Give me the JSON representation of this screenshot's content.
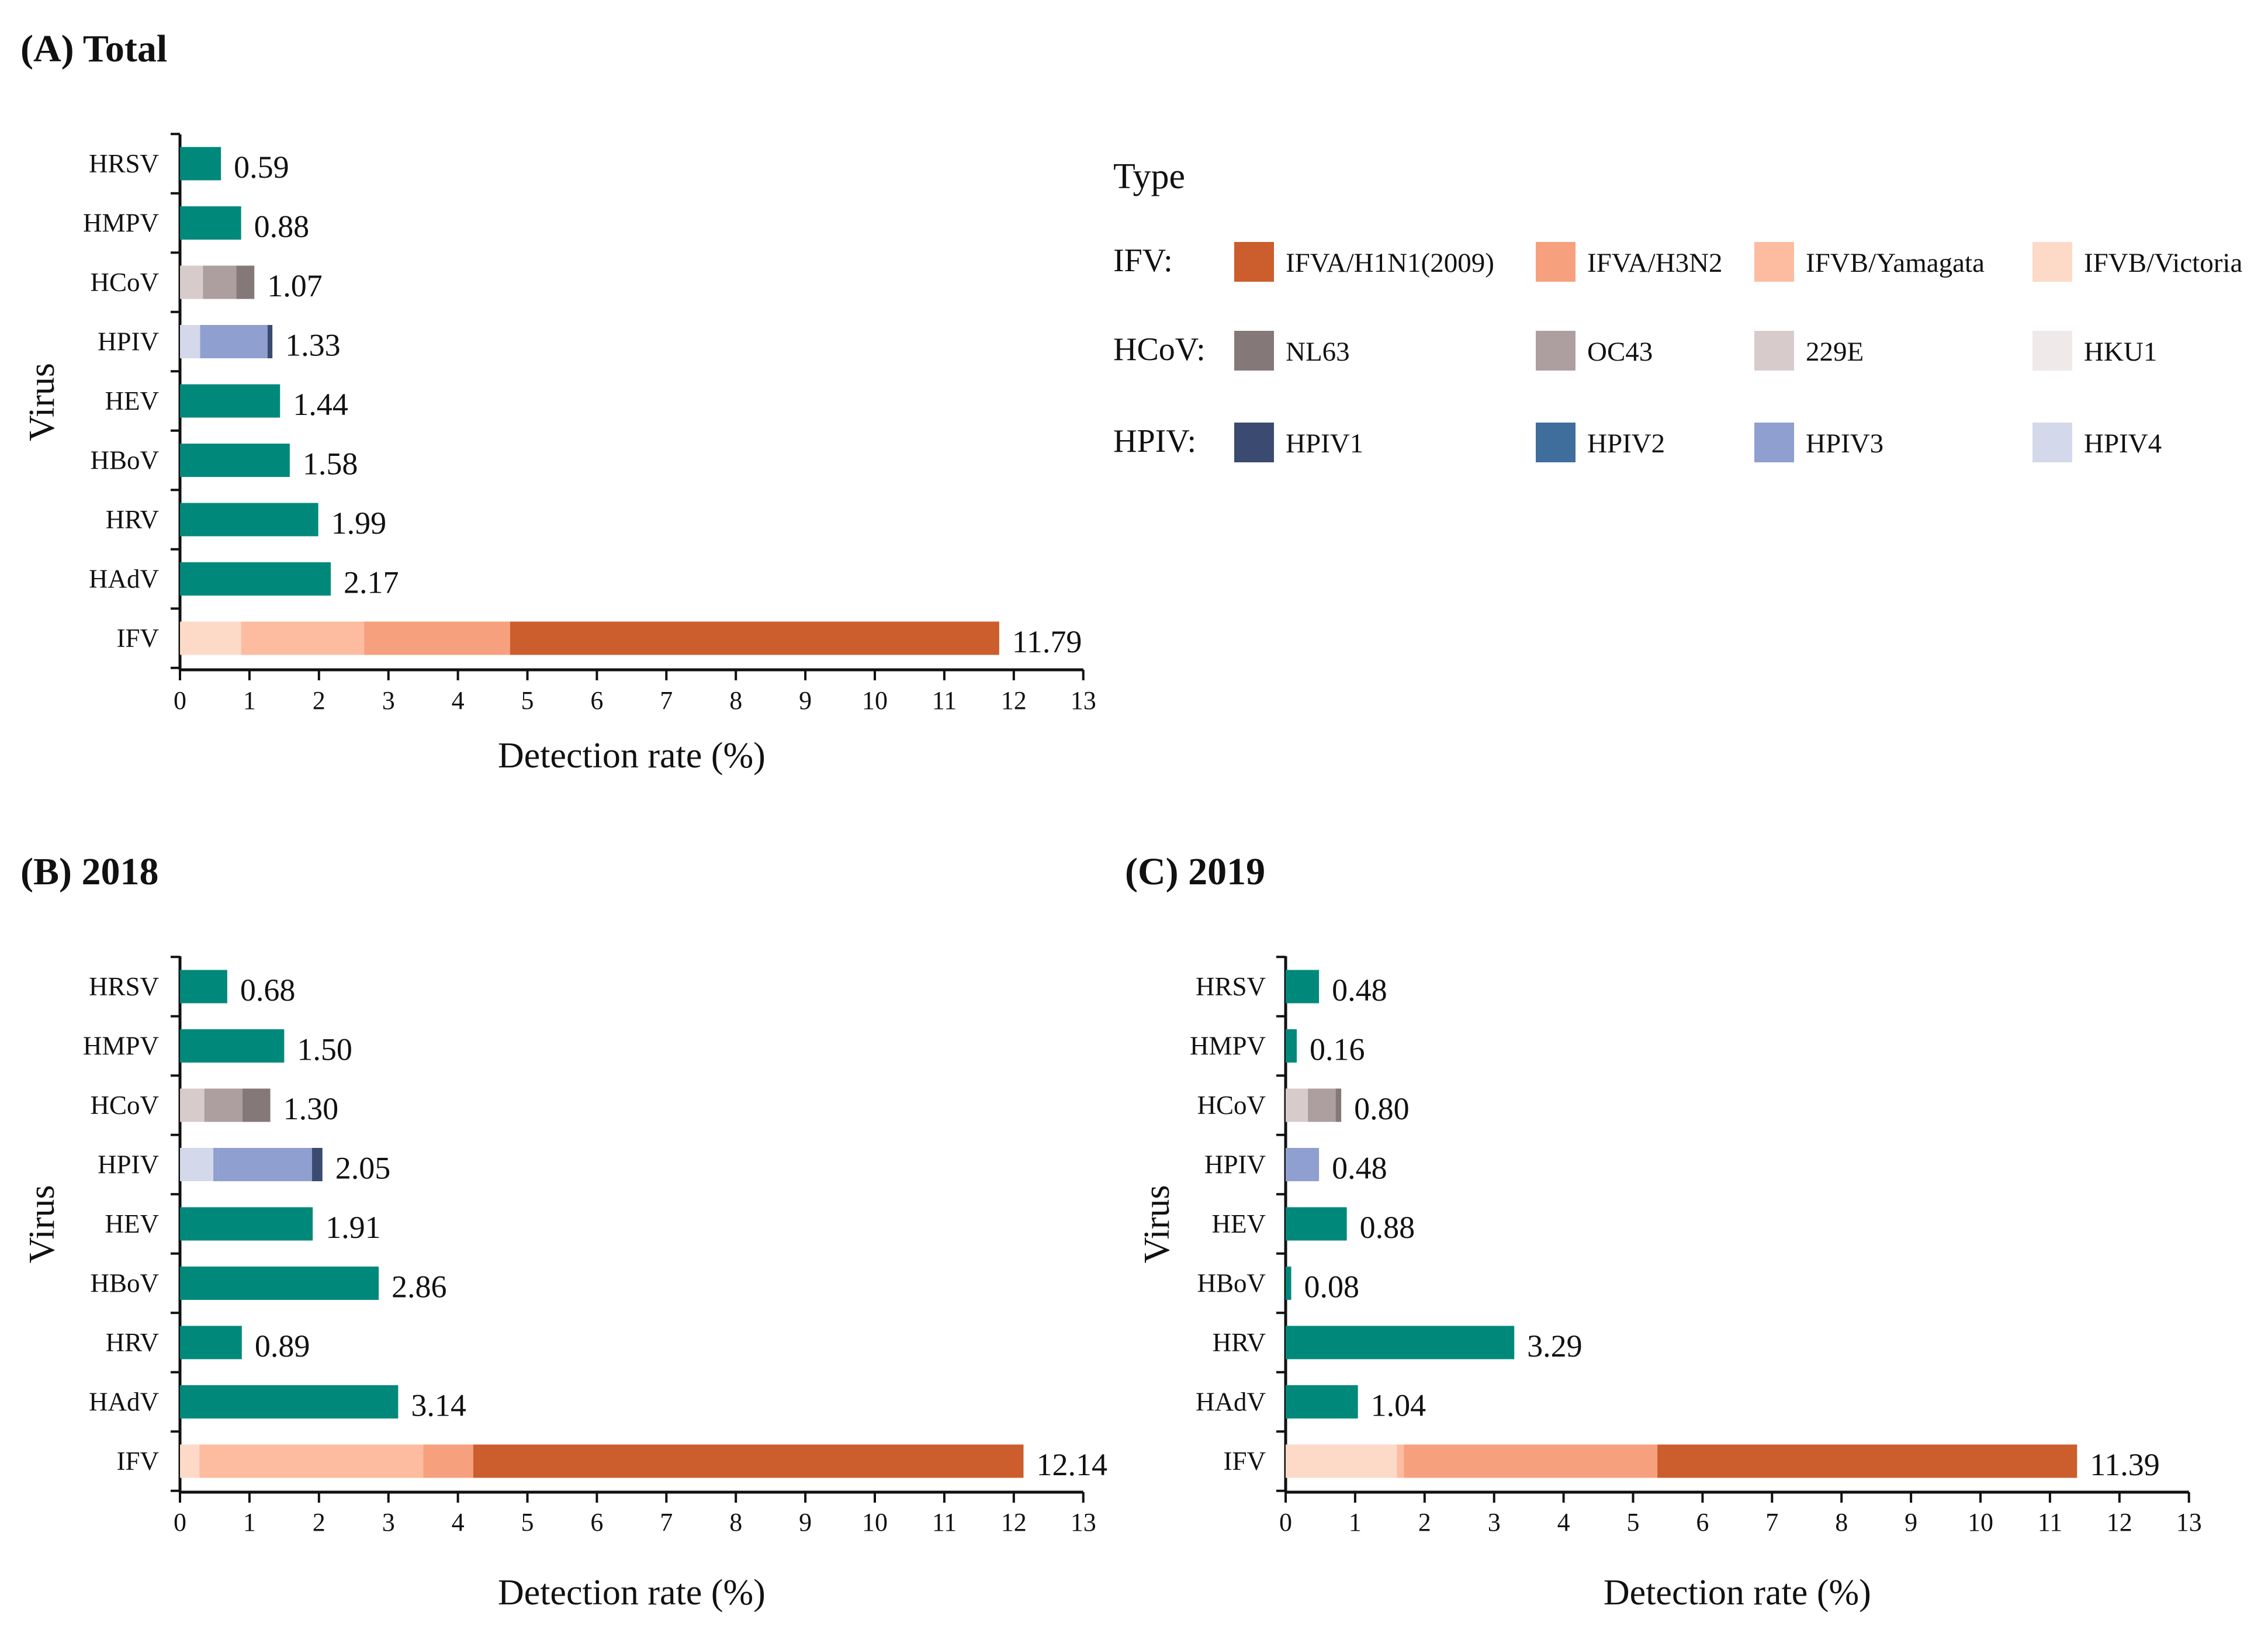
{
  "colors": {
    "single": "#00897b",
    "IFVA/H1N1(2009)": "#cc5d2c",
    "IFVA/H3N2": "#f7a07e",
    "IFVB/Yamagata": "#fdbc9f",
    "IFVB/Victoria": "#fdd9c8",
    "NL63": "#857878",
    "OC43": "#ad9f9f",
    "229E": "#d7cbcb",
    "HKU1": "#efe9e9",
    "HPIV1": "#3b4a70",
    "HPIV2": "#3f6e9c",
    "HPIV3": "#8f9fcf",
    "HPIV4": "#d3d9ea",
    "axis": "#111111"
  },
  "legend": {
    "title": "Type",
    "groups": [
      {
        "label": "IFV:",
        "entries": [
          "IFVA/H1N1(2009)",
          "IFVA/H3N2",
          "IFVB/Yamagata",
          "IFVB/Victoria"
        ]
      },
      {
        "label": "HCoV:",
        "entries": [
          "NL63",
          "OC43",
          "229E",
          "HKU1"
        ]
      },
      {
        "label": "HPIV:",
        "entries": [
          "HPIV1",
          "HPIV2",
          "HPIV3",
          "HPIV4"
        ]
      }
    ]
  },
  "chart_data": [
    {
      "type": "bar",
      "orientation": "horizontal",
      "stacked": true,
      "title": "(A) Total",
      "xlabel": "Detection rate (%)",
      "ylabel": "Virus",
      "xlim": [
        0,
        13
      ],
      "xticks": [
        "0",
        "1",
        "2",
        "3",
        "4",
        "5",
        "6",
        "7",
        "8",
        "9",
        "10",
        "11",
        "12",
        "13"
      ],
      "categories": [
        "HRSV",
        "HMPV",
        "HCoV",
        "HPIV",
        "HEV",
        "HBoV",
        "HRV",
        "HAdV",
        "IFV"
      ],
      "totals": [
        "0.59",
        "0.88",
        "1.07",
        "1.33",
        "1.44",
        "1.58",
        "1.99",
        "2.17",
        "11.79"
      ],
      "stacks": {
        "HCoV": [
          {
            "type": "229E",
            "value": 0.33
          },
          {
            "type": "OC43",
            "value": 0.48
          },
          {
            "type": "NL63",
            "value": 0.26
          }
        ],
        "HPIV": [
          {
            "type": "HPIV4",
            "value": 0.29
          },
          {
            "type": "HPIV3",
            "value": 0.97
          },
          {
            "type": "HPIV1",
            "value": 0.07
          }
        ],
        "IFV": [
          {
            "type": "IFVB/Victoria",
            "value": 0.88
          },
          {
            "type": "IFVB/Yamagata",
            "value": 1.77
          },
          {
            "type": "IFVA/H3N2",
            "value": 2.1
          },
          {
            "type": "IFVA/H1N1(2009)",
            "value": 7.04
          }
        ]
      }
    },
    {
      "type": "bar",
      "orientation": "horizontal",
      "stacked": true,
      "title": "(B) 2018",
      "xlabel": "Detection rate (%)",
      "ylabel": "Virus",
      "xlim": [
        0,
        13
      ],
      "xticks": [
        "0",
        "1",
        "2",
        "3",
        "4",
        "5",
        "6",
        "7",
        "8",
        "9",
        "10",
        "11",
        "12",
        "13"
      ],
      "categories": [
        "HRSV",
        "HMPV",
        "HCoV",
        "HPIV",
        "HEV",
        "HBoV",
        "HRV",
        "HAdV",
        "IFV"
      ],
      "totals": [
        "0.68",
        "1.50",
        "1.30",
        "2.05",
        "1.91",
        "2.86",
        "0.89",
        "3.14",
        "12.14"
      ],
      "stacks": {
        "HCoV": [
          {
            "type": "229E",
            "value": 0.35
          },
          {
            "type": "OC43",
            "value": 0.55
          },
          {
            "type": "NL63",
            "value": 0.4
          }
        ],
        "HPIV": [
          {
            "type": "HPIV4",
            "value": 0.48
          },
          {
            "type": "HPIV3",
            "value": 0.07
          },
          {
            "type": "HPIV3",
            "value": 1.35
          },
          {
            "type": "HPIV1",
            "value": 0.15
          }
        ],
        "IFV": [
          {
            "type": "IFVB/Victoria",
            "value": 0.28
          },
          {
            "type": "IFVB/Yamagata",
            "value": 3.22
          },
          {
            "type": "IFVA/H3N2",
            "value": 0.72
          },
          {
            "type": "IFVA/H1N1(2009)",
            "value": 7.92
          }
        ]
      }
    },
    {
      "type": "bar",
      "orientation": "horizontal",
      "stacked": true,
      "title": "(C) 2019",
      "xlabel": "Detection rate (%)",
      "ylabel": "Virus",
      "xlim": [
        0,
        13
      ],
      "xticks": [
        "0",
        "1",
        "2",
        "3",
        "4",
        "5",
        "6",
        "7",
        "8",
        "9",
        "10",
        "11",
        "12",
        "13"
      ],
      "categories": [
        "HRSV",
        "HMPV",
        "HCoV",
        "HPIV",
        "HEV",
        "HBoV",
        "HRV",
        "HAdV",
        "IFV"
      ],
      "totals": [
        "0.48",
        "0.16",
        "0.80",
        "0.48",
        "0.88",
        "0.08",
        "3.29",
        "1.04",
        "11.39"
      ],
      "stacks": {
        "HCoV": [
          {
            "type": "229E",
            "value": 0.32
          },
          {
            "type": "OC43",
            "value": 0.4
          },
          {
            "type": "NL63",
            "value": 0.08
          }
        ],
        "HPIV": [
          {
            "type": "HPIV3",
            "value": 0.48
          }
        ],
        "IFV": [
          {
            "type": "IFVB/Victoria",
            "value": 1.6
          },
          {
            "type": "IFVB/Yamagata",
            "value": 0.1
          },
          {
            "type": "IFVA/H3N2",
            "value": 3.65
          },
          {
            "type": "IFVA/H1N1(2009)",
            "value": 6.04
          }
        ]
      }
    }
  ]
}
